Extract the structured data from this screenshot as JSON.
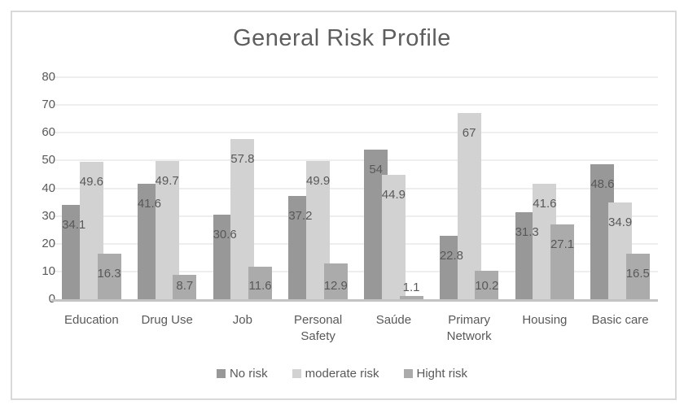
{
  "chart_data": {
    "type": "bar",
    "title": "General Risk Profile",
    "categories": [
      "Education",
      "Drug Use",
      "Job",
      "Personal Safety",
      "Saúde",
      "Primary Network",
      "Housing",
      "Basic care"
    ],
    "series": [
      {
        "name": "No risk",
        "color": "#989898",
        "values": [
          34.1,
          41.6,
          30.6,
          37.2,
          54,
          22.8,
          31.3,
          48.6
        ]
      },
      {
        "name": "moderate risk",
        "color": "#d2d2d2",
        "values": [
          49.6,
          49.7,
          57.8,
          49.9,
          44.9,
          67,
          41.6,
          34.9
        ]
      },
      {
        "name": "Hight risk",
        "color": "#ababab",
        "values": [
          16.3,
          8.7,
          11.6,
          12.9,
          1.1,
          10.2,
          27.1,
          16.5
        ]
      }
    ],
    "y_ticks": [
      0,
      10,
      20,
      30,
      40,
      50,
      60,
      70,
      80
    ],
    "ylim": [
      0,
      80
    ],
    "grid": true,
    "legend_position": "bottom",
    "xlabel": "",
    "ylabel": "",
    "colors": {
      "label_text": "#595959",
      "title_text": "#5e5e5e",
      "gridline": "#eeeeee",
      "axis_line": "#c3c3c3",
      "frame_border": "#d9d9d9",
      "background": "#ffffff"
    }
  }
}
